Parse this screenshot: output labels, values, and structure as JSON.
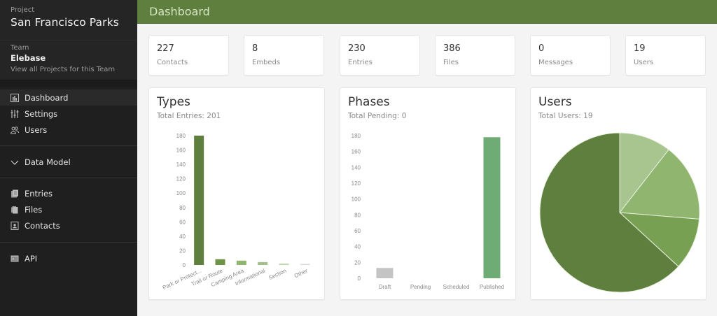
{
  "sidebar": {
    "project_label": "Project",
    "project_name": "San Francisco Parks",
    "team_label": "Team",
    "team_name": "Elebase",
    "team_link": "View all Projects for this Team",
    "items": [
      {
        "label": "Dashboard",
        "icon": "bar-chart-icon",
        "active": true
      },
      {
        "label": "Settings",
        "icon": "sliders-icon"
      },
      {
        "label": "Users",
        "icon": "users-icon"
      },
      {
        "label": "Data Model",
        "icon": "chevron-down-icon"
      },
      {
        "label": "Entries",
        "icon": "entries-icon"
      },
      {
        "label": "Files",
        "icon": "files-icon"
      },
      {
        "label": "Contacts",
        "icon": "contacts-icon"
      },
      {
        "label": "API",
        "icon": "terminal-icon"
      }
    ]
  },
  "header": {
    "title": "Dashboard",
    "color": "#5e7f3d"
  },
  "stats": [
    {
      "value": "227",
      "label": "Contacts"
    },
    {
      "value": "8",
      "label": "Embeds"
    },
    {
      "value": "230",
      "label": "Entries"
    },
    {
      "value": "386",
      "label": "Files"
    },
    {
      "value": "0",
      "label": "Messages"
    },
    {
      "value": "19",
      "label": "Users"
    }
  ],
  "cards": {
    "types": {
      "title": "Types",
      "subtitle": "Total Entries: 201"
    },
    "phases": {
      "title": "Phases",
      "subtitle": "Total Pending: 0"
    },
    "users": {
      "title": "Users",
      "subtitle": "Total Users: 19"
    }
  },
  "chart_data": [
    {
      "type": "bar",
      "title": "Types",
      "subtitle": "Total Entries: 201",
      "categories": [
        "Park or Protect...",
        "Trail or Route",
        "Camping Area",
        "Informational",
        "Section",
        "Other"
      ],
      "values": [
        180,
        8,
        6,
        4,
        2,
        1
      ],
      "colors": [
        "#5e7f3d",
        "#6f9447",
        "#8fb56f",
        "#a3bf8a",
        "#c2d6b0",
        "#d6dccf"
      ],
      "yticks": [
        0,
        20,
        40,
        60,
        80,
        100,
        120,
        140,
        160,
        180
      ],
      "ylim": [
        0,
        180
      ],
      "xlabel": "",
      "ylabel": "",
      "grid": false
    },
    {
      "type": "bar",
      "title": "Phases",
      "subtitle": "Total Pending: 0",
      "categories": [
        "Draft",
        "Pending",
        "Scheduled",
        "Published"
      ],
      "values": [
        13,
        0,
        0,
        178
      ],
      "colors": [
        "#c4c4c4",
        "#c4c4c4",
        "#c4c4c4",
        "#6fab74"
      ],
      "yticks": [
        0,
        20,
        40,
        60,
        80,
        100,
        120,
        140,
        160,
        180
      ],
      "ylim": [
        0,
        180
      ],
      "xlabel": "",
      "ylabel": "",
      "grid": false
    },
    {
      "type": "pie",
      "title": "Users",
      "subtitle": "Total Users: 19",
      "values": [
        2,
        3,
        2,
        12
      ],
      "colors": [
        "#a8c48f",
        "#8fb56f",
        "#78a053",
        "#5e7f3d"
      ]
    }
  ]
}
